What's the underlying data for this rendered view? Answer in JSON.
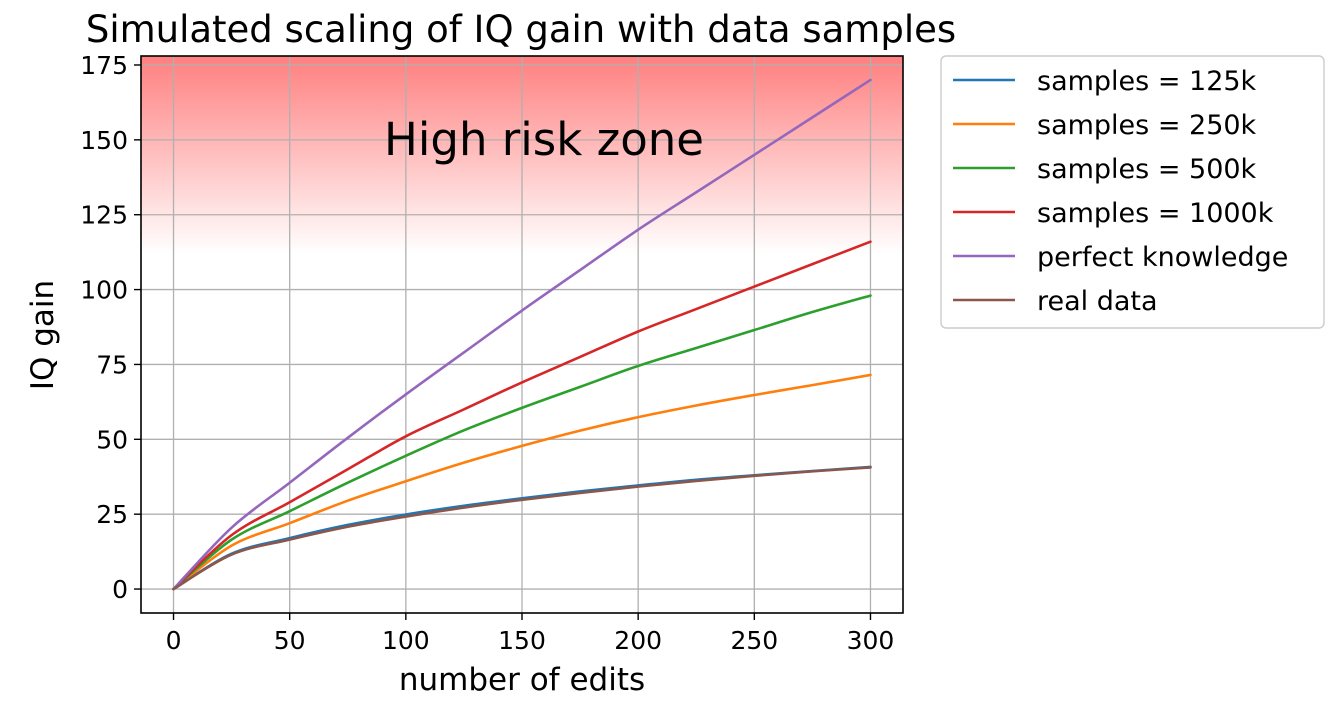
{
  "chart_data": {
    "type": "line",
    "title": "Simulated scaling of IQ gain with data samples",
    "xlabel": "number of edits",
    "ylabel": "IQ gain",
    "xlim": [
      -14,
      314
    ],
    "ylim": [
      -8,
      178
    ],
    "x_ticks": [
      0,
      50,
      100,
      150,
      200,
      250,
      300
    ],
    "y_ticks": [
      0,
      25,
      50,
      75,
      100,
      125,
      150,
      175
    ],
    "x_tick_labels": [
      "0",
      "50",
      "100",
      "150",
      "200",
      "250",
      "300"
    ],
    "y_tick_labels": [
      "0",
      "25",
      "50",
      "75",
      "100",
      "125",
      "150",
      "175"
    ],
    "grid": true,
    "legend_position": "outside-right",
    "annotation": {
      "text": "High risk zone",
      "x": 150,
      "y": 150
    },
    "risk_zone": {
      "y_from": 112,
      "y_to": 178,
      "color": "#ff7f7f"
    },
    "x": [
      0,
      25,
      50,
      75,
      100,
      125,
      150,
      175,
      200,
      225,
      250,
      275,
      300
    ],
    "series": [
      {
        "name": "samples = 125k",
        "color": "#1f77b4",
        "values": [
          0,
          11.8,
          17.0,
          21.4,
          24.9,
          27.8,
          30.3,
          32.6,
          34.6,
          36.5,
          38.0,
          39.4,
          40.8
        ]
      },
      {
        "name": "samples = 250k",
        "color": "#ff7f0e",
        "values": [
          0,
          14.5,
          22.0,
          29.5,
          36.0,
          42.2,
          47.8,
          52.9,
          57.4,
          61.3,
          64.8,
          68.1,
          71.5
        ]
      },
      {
        "name": "samples = 500k",
        "color": "#2ca02c",
        "values": [
          0,
          16.5,
          26.0,
          35.5,
          44.5,
          53.0,
          60.5,
          67.5,
          74.5,
          80.5,
          86.5,
          92.5,
          98.0
        ]
      },
      {
        "name": "samples = 1000k",
        "color": "#d62728",
        "values": [
          0,
          18.0,
          29.0,
          40.0,
          51.0,
          60.0,
          69.0,
          77.5,
          86.0,
          93.5,
          101.0,
          108.5,
          116.0
        ]
      },
      {
        "name": "perfect knowledge",
        "color": "#9467bd",
        "values": [
          0,
          20.5,
          35.5,
          50.5,
          65.0,
          79.0,
          93.0,
          106.5,
          120.0,
          132.5,
          145.0,
          157.5,
          170.0
        ]
      },
      {
        "name": "real data",
        "color": "#8c564b",
        "values": [
          0,
          11.5,
          16.5,
          20.8,
          24.2,
          27.2,
          29.8,
          32.1,
          34.2,
          36.1,
          37.8,
          39.3,
          40.6
        ]
      }
    ]
  }
}
